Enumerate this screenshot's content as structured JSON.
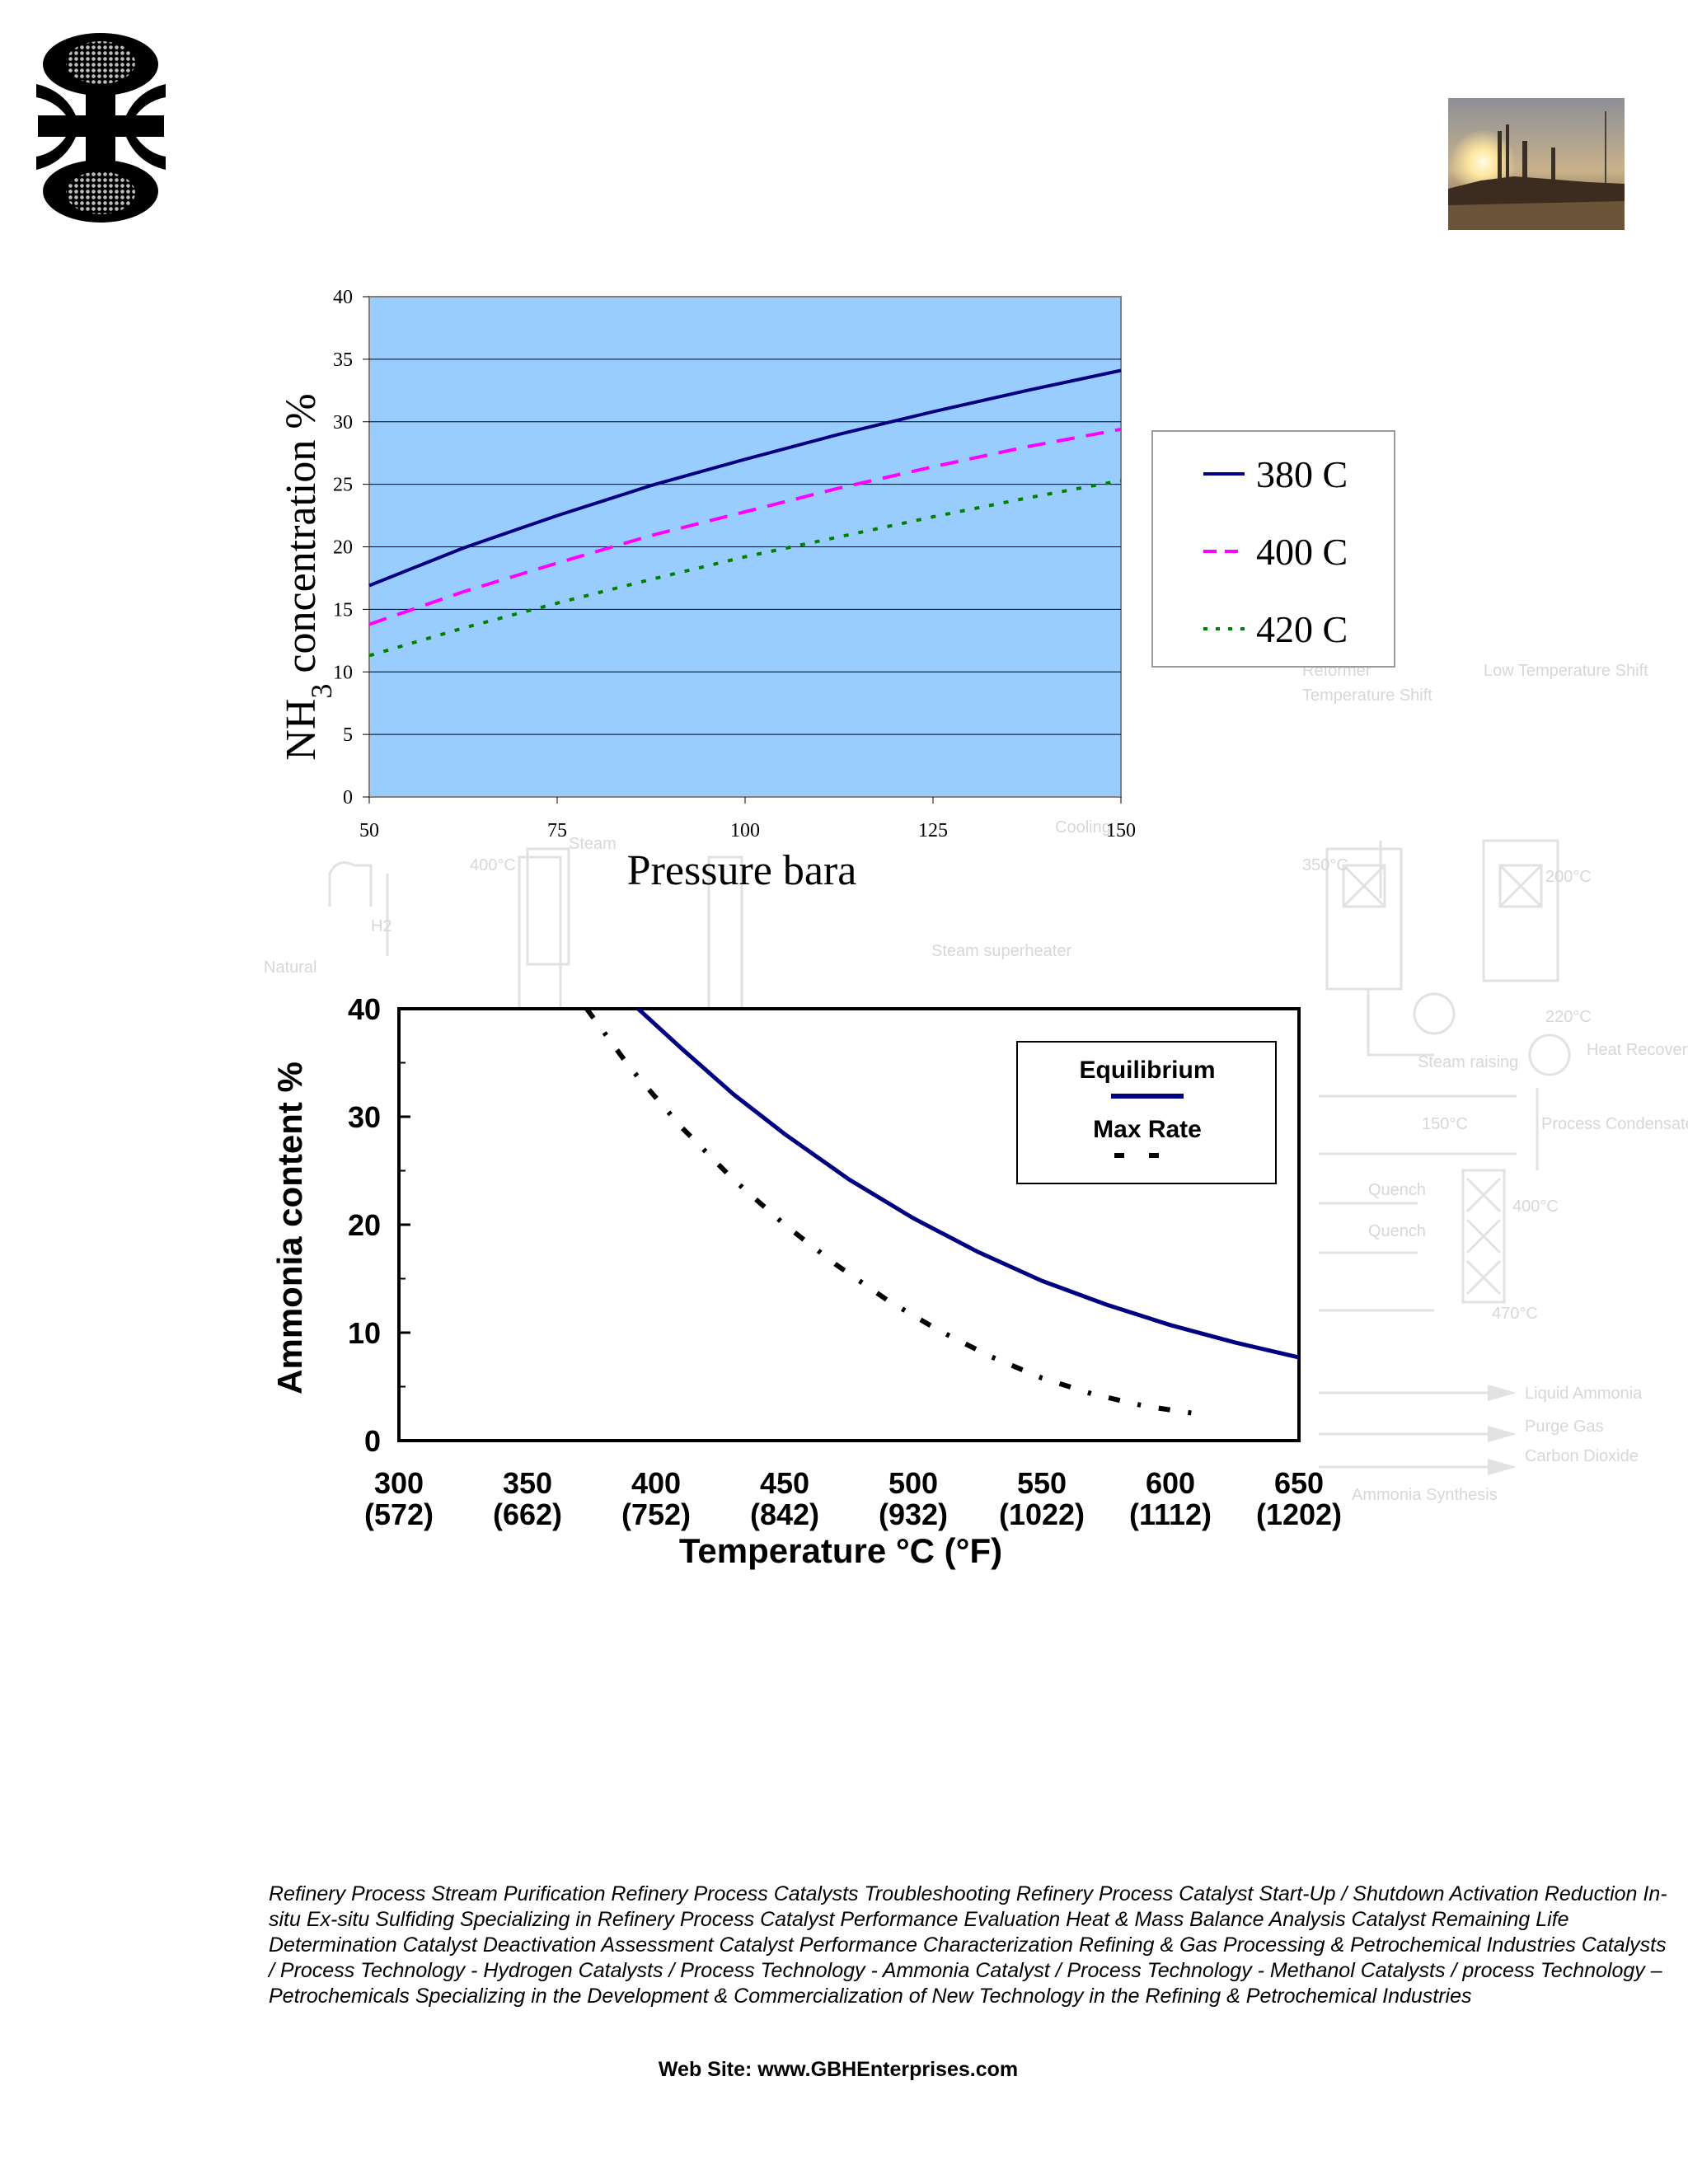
{
  "background_diagram": {
    "labels": [
      "Reformer",
      "Temperature Shift",
      "Low Temperature Shift",
      "Cooling",
      "Steam",
      "Steam superheater",
      "Natural",
      "H2",
      "400°C",
      "350°C",
      "200°C",
      "220°C",
      "Heat Recovery",
      "Steam raising",
      "150°C",
      "Process Condensate",
      "Quench",
      "Quench",
      "400°C",
      "470°C",
      "Liquid Ammonia",
      "Purge Gas",
      "Carbon Dioxide",
      "Ammonia Synthesis"
    ]
  },
  "chart_data": [
    {
      "type": "line",
      "title": "",
      "xlabel": "Pressure bara",
      "ylabel_main": "NH",
      "ylabel_sub": "3",
      "ylabel_rest": " concentration %",
      "xlim": [
        50,
        150
      ],
      "ylim": [
        0,
        40
      ],
      "x_ticks": [
        "50",
        "75",
        "100",
        "125",
        "150"
      ],
      "y_ticks": [
        "0",
        "5",
        "10",
        "15",
        "20",
        "25",
        "30",
        "35",
        "40"
      ],
      "plot_background": "#99ccff",
      "series": [
        {
          "name": "380 C",
          "color": "#000080",
          "style": "solid",
          "x": [
            50,
            62.5,
            75,
            87.5,
            100,
            112.5,
            125,
            137.5,
            150
          ],
          "values": [
            16.9,
            19.9,
            22.5,
            24.9,
            27.0,
            29.0,
            30.8,
            32.5,
            34.1
          ]
        },
        {
          "name": "400 C",
          "color": "#ff00ff",
          "style": "dash",
          "x": [
            50,
            62.5,
            75,
            87.5,
            100,
            112.5,
            125,
            137.5,
            150
          ],
          "values": [
            13.8,
            16.4,
            18.7,
            20.9,
            22.8,
            24.7,
            26.4,
            28.0,
            29.4
          ]
        },
        {
          "name": "420 C",
          "color": "#008000",
          "style": "dot",
          "x": [
            50,
            62.5,
            75,
            87.5,
            100,
            112.5,
            125,
            137.5,
            150
          ],
          "values": [
            11.3,
            13.5,
            15.5,
            17.4,
            19.2,
            20.8,
            22.4,
            23.9,
            25.3
          ]
        }
      ]
    },
    {
      "type": "line",
      "title": "",
      "xlabel": "Temperature °C (°F)",
      "ylabel": "Ammonia content  %",
      "xlim": [
        300,
        650
      ],
      "ylim": [
        0,
        40
      ],
      "x_ticks": [
        "300",
        "350",
        "400",
        "450",
        "500",
        "550",
        "600",
        "650"
      ],
      "x_ticks_secondary": [
        "(572)",
        "(662)",
        "(752)",
        "(842)",
        "(932)",
        "(1022)",
        "(1112)",
        "(1202)"
      ],
      "y_ticks": [
        "0",
        "10",
        "20",
        "30",
        "40"
      ],
      "series": [
        {
          "name": "Equilibrium",
          "color": "#000080",
          "style": "solid",
          "x": [
            393,
            410,
            430,
            450,
            475,
            500,
            525,
            550,
            575,
            600,
            625,
            650
          ],
          "values": [
            40,
            36.3,
            32.1,
            28.4,
            24.2,
            20.6,
            17.5,
            14.8,
            12.6,
            10.7,
            9.1,
            7.7
          ]
        },
        {
          "name": "Max Rate",
          "color": "#000000",
          "style": "dash-dot",
          "x": [
            373,
            390,
            410,
            430,
            450,
            470,
            490,
            510,
            530,
            550,
            570,
            590,
            610
          ],
          "values": [
            40,
            34.5,
            29.0,
            24.2,
            20.0,
            16.3,
            13.0,
            10.2,
            7.8,
            5.8,
            4.3,
            3.2,
            2.5
          ]
        }
      ]
    }
  ],
  "footer": {
    "text": "Refinery Process Stream Purification Refinery Process Catalysts Troubleshooting Refinery Process Catalyst Start-Up / Shutdown  Activation Reduction  In-situ  Ex-situ Sulfiding Specializing in Refinery Process Catalyst Performance Evaluation Heat & Mass Balance Analysis  Catalyst Remaining Life Determination  Catalyst Deactivation Assessment  Catalyst Performance Characterization  Refining  & Gas Processing & Petrochemical Industries  Catalysts / Process Technology - Hydrogen  Catalysts / Process Technology - Ammonia  Catalyst / Process Technology - Methanol  Catalysts / process Technology – Petrochemicals  Specializing in the Development  & Commercialization of New Technology in the Refining &   Petrochemical Industries",
    "website": "Web Site: www.GBHEnterprises.com"
  }
}
